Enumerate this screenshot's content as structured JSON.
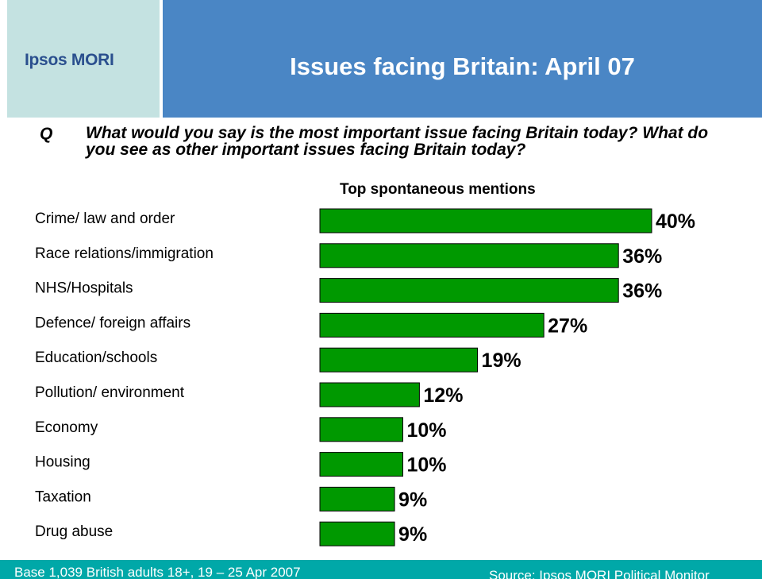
{
  "header": {
    "logo": "Ipsos MORI",
    "title": "Issues facing Britain: April 07"
  },
  "question": {
    "label": "Q",
    "text": "What would you say is the most important issue facing Britain today? What do you see as other important issues facing Britain today?"
  },
  "footer": {
    "base": "Base 1,039 British adults 18+, 19 – 25 Apr 2007",
    "source": "Source: Ipsos MORI Political Monitor"
  },
  "colors": {
    "bar_fill": "#009900",
    "title_panel": "#4a86c5",
    "logo_panel": "#c4e2e1",
    "footer": "#00a8a8"
  },
  "chart_data": {
    "type": "bar",
    "orientation": "horizontal",
    "subtitle": "Top spontaneous mentions",
    "categories": [
      "Crime/ law and order",
      "Race relations/immigration",
      "NHS/Hospitals",
      "Defence/ foreign affairs",
      "Education/schools",
      "Pollution/ environment",
      "Economy",
      "Housing",
      "Taxation",
      "Drug abuse"
    ],
    "values": [
      40,
      36,
      36,
      27,
      19,
      12,
      10,
      10,
      9,
      9
    ],
    "value_labels": [
      "40%",
      "36%",
      "36%",
      "27%",
      "19%",
      "12%",
      "10%",
      "10%",
      "9%",
      "9%"
    ],
    "unit": "%",
    "axis_visible": false,
    "grid": false
  }
}
